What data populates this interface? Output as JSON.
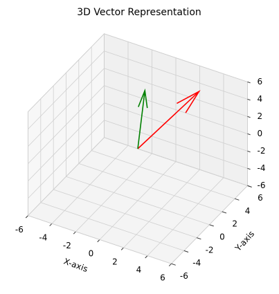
{
  "chart_data": {
    "type": "quiver3d",
    "title": "3D Vector Representation",
    "xlabel": "X-axis",
    "ylabel": "Y-axis",
    "xlim": [
      -6,
      6
    ],
    "ylim": [
      -6,
      6
    ],
    "zlim": [
      -6,
      6
    ],
    "xticks": [
      -6,
      -4,
      -2,
      0,
      2,
      4,
      6
    ],
    "yticks": [
      -6,
      -4,
      -2,
      0,
      2,
      4,
      6
    ],
    "zticks": [
      -6,
      -4,
      -2,
      0,
      2,
      4,
      6
    ],
    "grid": true,
    "series": [
      {
        "color": "red",
        "x": 0,
        "y": 0,
        "z": 0,
        "u": 3,
        "v": 4,
        "w": 5
      },
      {
        "color": "green",
        "x": 0,
        "y": 0,
        "z": 0,
        "u": -1,
        "v": 3,
        "w": 4
      }
    ]
  }
}
